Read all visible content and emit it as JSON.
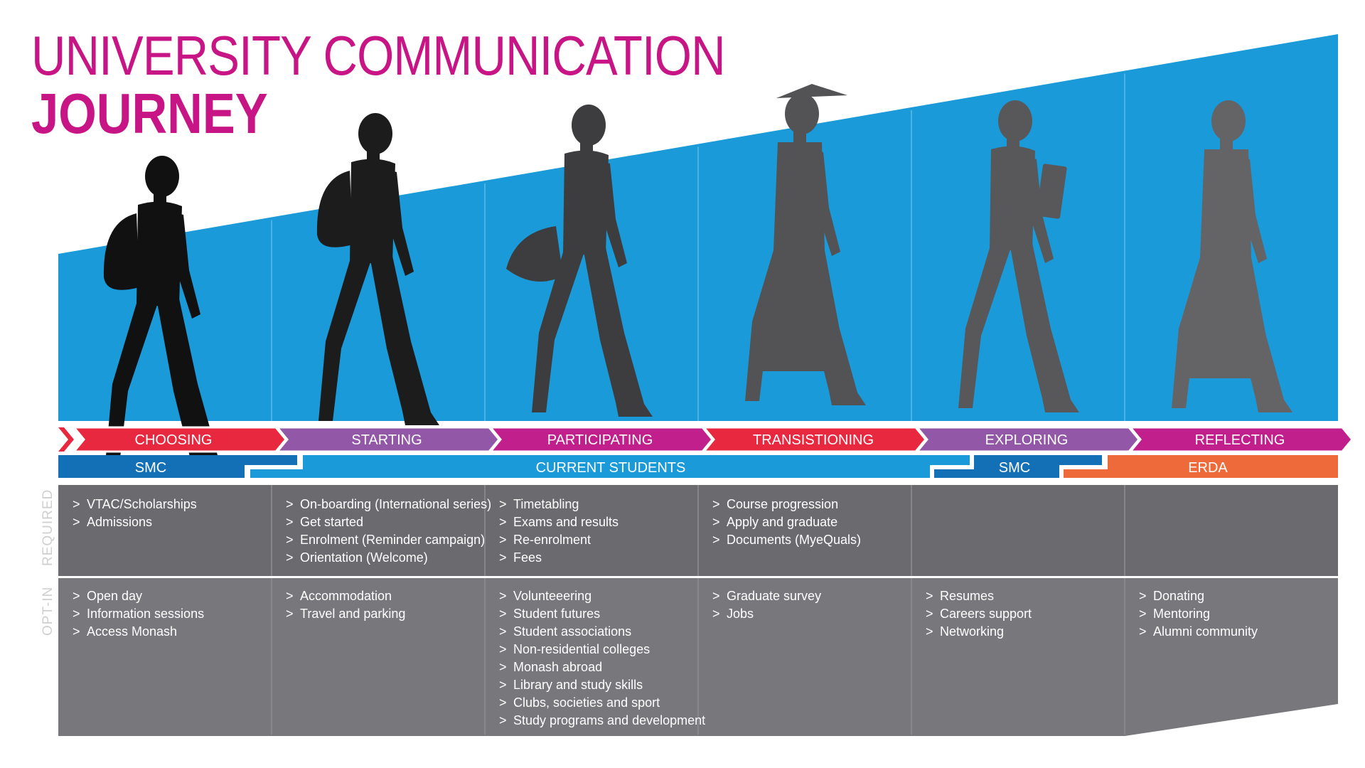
{
  "title": {
    "line1": "UNIVERSITY COMMUNICATION",
    "line2": "JOURNEY"
  },
  "colors": {
    "sky": "#1a9ad9",
    "magenta": "#c71585",
    "red": "#e8283f",
    "purple": "#9257a6",
    "pink": "#c11f8c",
    "smc_blue": "#1470b6",
    "students_blue": "#1a9ad9",
    "erda_orange": "#ee6a3a",
    "required_gray": "#6b6b6f",
    "optin_gray": "#78787c"
  },
  "phases": [
    {
      "label": "CHOOSING",
      "color": "#e8283f",
      "silhouette": "student-with-backpack-icon"
    },
    {
      "label": "STARTING",
      "color": "#9257a6",
      "silhouette": "student-with-backpack-icon"
    },
    {
      "label": "PARTICIPATING",
      "color": "#c11f8c",
      "silhouette": "student-with-shoulder-bag-icon"
    },
    {
      "label": "TRANSISTIONING",
      "color": "#e8283f",
      "silhouette": "graduate-with-mortarboard-icon"
    },
    {
      "label": "EXPLORING",
      "color": "#9257a6",
      "silhouette": "professional-with-folder-icon"
    },
    {
      "label": "REFLECTING",
      "color": "#c11f8c",
      "silhouette": "alumna-in-dress-icon"
    }
  ],
  "audiences": [
    {
      "label": "SMC",
      "color": "#1470b6"
    },
    {
      "label": "CURRENT STUDENTS",
      "color": "#1a9ad9"
    },
    {
      "label": "SMC",
      "color": "#1470b6"
    },
    {
      "label": "ERDA",
      "color": "#ee6a3a"
    }
  ],
  "rows": {
    "required": {
      "label": "REQUIRED",
      "cells": [
        [
          "VTAC/Scholarships",
          "Admissions"
        ],
        [
          "On-boarding (International series)",
          "Get started",
          "Enrolment (Reminder campaign)",
          "Orientation (Welcome)"
        ],
        [
          "Timetabling",
          "Exams and results",
          "Re-enrolment",
          "Fees"
        ],
        [
          "Course progression",
          "Apply and graduate",
          "Documents (MyeQuals)"
        ],
        [],
        []
      ]
    },
    "optin": {
      "label": "OPT-IN",
      "cells": [
        [
          "Open day",
          "Information sessions",
          "Access Monash"
        ],
        [
          "Accommodation",
          "Travel and parking"
        ],
        [
          "Volunteeering",
          "Student futures",
          "Student associations",
          "Non-residential colleges",
          "Monash abroad",
          "Library and study skills",
          "Clubs, societies and sport",
          "Study programs and development"
        ],
        [
          "Graduate survey",
          "Jobs"
        ],
        [
          "Resumes",
          "Careers support",
          "Networking"
        ],
        [
          "Donating",
          "Mentoring",
          "Alumni community"
        ]
      ]
    }
  },
  "bullet_glyph": ">"
}
